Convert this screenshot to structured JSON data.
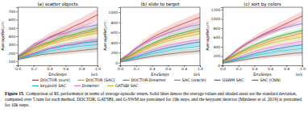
{
  "chart_data": [
    {
      "type": "line",
      "title": "(a) scatter objects",
      "x_label": "EnvSteps",
      "y_label": "AverageReturn",
      "annotations": [
        "1e5"
      ],
      "grid": false,
      "x": [
        0,
        0.1,
        0.2,
        0.3,
        0.4,
        0.5,
        0.6,
        0.7,
        0.8,
        0.9,
        1.0
      ],
      "xlim": [
        0,
        1.0
      ],
      "xticks": [
        {
          "value": 0,
          "label": "0.0"
        },
        {
          "value": 0.2,
          "label": "0.2"
        },
        {
          "value": 0.4,
          "label": "0.4"
        },
        {
          "value": 0.6,
          "label": "0.6"
        },
        {
          "value": 0.8,
          "label": "0.8"
        },
        {
          "value": 1.0,
          "label": "1.0"
        }
      ],
      "ylim": [
        50,
        750
      ],
      "yticks": [
        100,
        200,
        300,
        400,
        500,
        600,
        700
      ],
      "series": [
        {
          "name": "DOCTOR (ours)",
          "color": "#d62728",
          "values": [
            150,
            210,
            280,
            330,
            390,
            430,
            470,
            520,
            560,
            610,
            660
          ],
          "std": [
            20,
            30,
            40,
            45,
            50,
            55,
            60,
            60,
            65,
            70,
            70
          ]
        },
        {
          "name": "DOCTOR (SAC)",
          "color": "#ff7f0e",
          "values": [
            140,
            190,
            240,
            280,
            320,
            350,
            380,
            400,
            430,
            450,
            470
          ],
          "std": [
            15,
            20,
            20,
            25,
            25,
            30,
            30,
            35,
            35,
            40,
            40
          ]
        },
        {
          "name": "DOCTOR-Dreamer",
          "color": "#2ca02c",
          "values": [
            150,
            200,
            260,
            300,
            330,
            370,
            400,
            420,
            450,
            470,
            500
          ],
          "std": [
            15,
            20,
            20,
            25,
            25,
            30,
            30,
            35,
            35,
            40,
            40
          ]
        },
        {
          "name": "SAC (oracle)",
          "color": "#9467bd",
          "values": [
            160,
            230,
            300,
            340,
            380,
            420,
            440,
            470,
            500,
            520,
            540
          ],
          "std": [
            15,
            20,
            20,
            25,
            25,
            30,
            30,
            35,
            35,
            40,
            40
          ]
        },
        {
          "name": "GSWM SAC",
          "color": "#1f77b4",
          "values": [
            130,
            160,
            190,
            220,
            250,
            270,
            290,
            300,
            320,
            330,
            340
          ],
          "std": [
            15,
            20,
            20,
            25,
            25,
            30,
            30,
            35,
            35,
            40,
            40
          ]
        },
        {
          "name": "SAC (CNN)",
          "color": "#8c564b",
          "values": [
            120,
            140,
            160,
            180,
            190,
            200,
            210,
            220,
            230,
            240,
            250
          ],
          "std": [
            15,
            20,
            20,
            25,
            25,
            30,
            30,
            35,
            35,
            40,
            40
          ]
        },
        {
          "name": "keypoint SAC",
          "color": "#17becf",
          "values": [
            130,
            150,
            180,
            200,
            220,
            240,
            250,
            270,
            280,
            290,
            300
          ],
          "std": [
            15,
            20,
            20,
            25,
            25,
            30,
            30,
            35,
            35,
            40,
            40
          ]
        },
        {
          "name": "Dreamer",
          "color": "#e377c2",
          "values": [
            140,
            170,
            200,
            230,
            260,
            280,
            300,
            320,
            330,
            350,
            360
          ],
          "std": [
            15,
            20,
            20,
            25,
            25,
            30,
            30,
            35,
            35,
            40,
            40
          ]
        },
        {
          "name": "GATSBI SAC",
          "color": "#bcbd22",
          "values": [
            140,
            180,
            220,
            260,
            300,
            330,
            350,
            380,
            400,
            420,
            440
          ],
          "std": [
            15,
            20,
            20,
            25,
            25,
            30,
            30,
            35,
            35,
            40,
            40
          ]
        }
      ]
    },
    {
      "type": "line",
      "title": "(b) slide to target",
      "x_label": "EnvSteps",
      "y_label": "AverageReturn",
      "annotations": [
        "1e5"
      ],
      "grid": false,
      "x": [
        0,
        0.1,
        0.2,
        0.3,
        0.4,
        0.5,
        0.6,
        0.7,
        0.8,
        0.9,
        1.0
      ],
      "xlim": [
        0,
        1.0
      ],
      "xticks": [
        {
          "value": 0,
          "label": "0.0"
        },
        {
          "value": 0.2,
          "label": "0.2"
        },
        {
          "value": 0.4,
          "label": "0.4"
        },
        {
          "value": 0.6,
          "label": "0.6"
        },
        {
          "value": 0.8,
          "label": "0.8"
        },
        {
          "value": 1.0,
          "label": "1.0"
        }
      ],
      "ylim": [
        -50,
        1100
      ],
      "yticks": [
        0,
        200,
        400,
        600,
        800,
        1000
      ],
      "series": [
        {
          "color": "#d62728",
          "values": [
            50,
            150,
            280,
            400,
            500,
            580,
            650,
            720,
            780,
            840,
            900
          ],
          "std": [
            30,
            40,
            50,
            60,
            70,
            80,
            80,
            90,
            90,
            100,
            100
          ]
        },
        {
          "color": "#ff7f0e",
          "values": [
            40,
            110,
            200,
            280,
            350,
            420,
            480,
            520,
            560,
            600,
            630
          ],
          "std": [
            20,
            25,
            30,
            35,
            40,
            45,
            50,
            50,
            55,
            55,
            60
          ]
        },
        {
          "color": "#2ca02c",
          "values": [
            50,
            120,
            220,
            310,
            380,
            450,
            510,
            560,
            600,
            640,
            680
          ],
          "std": [
            20,
            25,
            30,
            35,
            40,
            45,
            50,
            50,
            55,
            55,
            60
          ]
        },
        {
          "color": "#9467bd",
          "values": [
            60,
            170,
            290,
            380,
            460,
            530,
            590,
            640,
            690,
            730,
            760
          ],
          "std": [
            20,
            25,
            30,
            35,
            40,
            45,
            50,
            50,
            55,
            55,
            60
          ]
        },
        {
          "color": "#1f77b4",
          "values": [
            30,
            70,
            120,
            170,
            220,
            260,
            300,
            330,
            360,
            390,
            410
          ],
          "std": [
            20,
            25,
            30,
            35,
            40,
            45,
            50,
            50,
            55,
            55,
            60
          ]
        },
        {
          "color": "#8c564b",
          "values": [
            20,
            40,
            70,
            100,
            130,
            150,
            170,
            190,
            210,
            220,
            240
          ],
          "std": [
            20,
            25,
            30,
            35,
            40,
            45,
            50,
            50,
            55,
            55,
            60
          ]
        },
        {
          "color": "#17becf",
          "values": [
            30,
            60,
            100,
            140,
            180,
            210,
            240,
            270,
            290,
            310,
            330
          ],
          "std": [
            20,
            25,
            30,
            35,
            40,
            45,
            50,
            50,
            55,
            55,
            60
          ]
        },
        {
          "color": "#e377c2",
          "values": [
            40,
            90,
            150,
            210,
            260,
            310,
            350,
            380,
            410,
            440,
            460
          ],
          "std": [
            20,
            25,
            30,
            35,
            40,
            45,
            50,
            50,
            55,
            55,
            60
          ]
        },
        {
          "color": "#bcbd22",
          "values": [
            40,
            100,
            180,
            250,
            320,
            380,
            430,
            470,
            510,
            540,
            570
          ],
          "std": [
            20,
            25,
            30,
            35,
            40,
            45,
            50,
            50,
            55,
            55,
            60
          ]
        }
      ]
    },
    {
      "type": "line",
      "title": "(c) sort by colors",
      "x_label": "EnvSteps",
      "y_label": "AverageReturn",
      "annotations": [
        "1e5"
      ],
      "grid": false,
      "x": [
        0,
        0.1,
        0.2,
        0.3,
        0.4,
        0.5,
        0.6,
        0.7,
        0.8,
        0.9,
        1.0
      ],
      "xlim": [
        0,
        1.0
      ],
      "xticks": [
        {
          "value": 0,
          "label": "0.0"
        },
        {
          "value": 0.2,
          "label": "0.2"
        },
        {
          "value": 0.4,
          "label": "0.4"
        },
        {
          "value": 0.6,
          "label": "0.6"
        },
        {
          "value": 0.8,
          "label": "0.8"
        },
        {
          "value": 1.0,
          "label": "1.0"
        }
      ],
      "ylim": [
        0,
        1250
      ],
      "yticks": [
        0,
        200,
        400,
        600,
        800,
        1000,
        1200
      ],
      "series": [
        {
          "color": "#d62728",
          "values": [
            80,
            200,
            340,
            460,
            560,
            660,
            740,
            820,
            900,
            980,
            1060
          ],
          "std": [
            30,
            40,
            50,
            60,
            70,
            80,
            80,
            90,
            90,
            100,
            100
          ]
        },
        {
          "color": "#ff7f0e",
          "values": [
            70,
            160,
            250,
            330,
            400,
            460,
            520,
            570,
            610,
            650,
            690
          ],
          "std": [
            20,
            25,
            30,
            35,
            40,
            45,
            50,
            50,
            55,
            55,
            60
          ]
        },
        {
          "color": "#2ca02c",
          "values": [
            80,
            170,
            270,
            360,
            440,
            510,
            570,
            620,
            670,
            710,
            750
          ],
          "std": [
            20,
            25,
            30,
            35,
            40,
            45,
            50,
            50,
            55,
            55,
            60
          ]
        },
        {
          "color": "#9467bd",
          "values": [
            90,
            220,
            360,
            470,
            560,
            640,
            710,
            770,
            820,
            860,
            900
          ],
          "std": [
            20,
            25,
            30,
            35,
            40,
            45,
            50,
            50,
            55,
            55,
            60
          ]
        },
        {
          "color": "#1f77b4",
          "values": [
            60,
            100,
            150,
            200,
            250,
            290,
            330,
            360,
            390,
            420,
            440
          ],
          "std": [
            20,
            25,
            30,
            35,
            40,
            45,
            50,
            50,
            55,
            55,
            60
          ]
        },
        {
          "color": "#8c564b",
          "values": [
            50,
            70,
            100,
            130,
            160,
            180,
            200,
            220,
            240,
            260,
            270
          ],
          "std": [
            20,
            25,
            30,
            35,
            40,
            45,
            50,
            50,
            55,
            55,
            60
          ]
        },
        {
          "color": "#17becf",
          "values": [
            60,
            90,
            130,
            170,
            210,
            240,
            270,
            300,
            320,
            340,
            360
          ],
          "std": [
            20,
            25,
            30,
            35,
            40,
            45,
            50,
            50,
            55,
            55,
            60
          ]
        },
        {
          "color": "#e377c2",
          "values": [
            70,
            120,
            180,
            240,
            300,
            350,
            390,
            430,
            460,
            490,
            520
          ],
          "std": [
            20,
            25,
            30,
            35,
            40,
            45,
            50,
            50,
            55,
            55,
            60
          ]
        },
        {
          "color": "#bcbd22",
          "values": [
            70,
            140,
            220,
            290,
            360,
            420,
            470,
            510,
            550,
            580,
            610
          ],
          "std": [
            20,
            25,
            30,
            35,
            40,
            45,
            50,
            50,
            55,
            55,
            60
          ]
        }
      ]
    }
  ],
  "caption_label": "Figure 15.",
  "caption": "Comparison of RL performance in terms of average episodic return. Solid lines denote the average values and shaded areas are the standard deviation, computed over 5 runs for each method. DOCTOR, GATSBI, and G-SWM are pretrained for 10k steps, and the keypoint detector (Minderer et al. 2019) is pretrained for 10k steps."
}
